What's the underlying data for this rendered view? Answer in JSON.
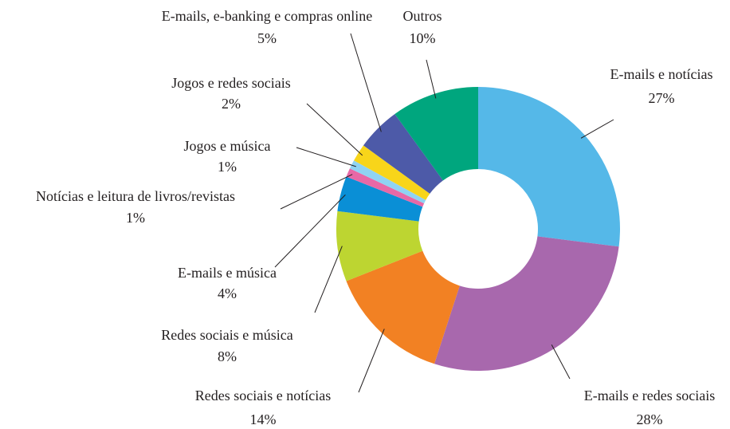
{
  "chart_data": {
    "type": "donut",
    "categories": [
      "E-mails e notícias",
      "E-mails e redes sociais",
      "Redes sociais e notícias",
      "Redes sociais e música",
      "E-mails e música",
      "Notícias e leitura de livros/revistas",
      "Jogos e música",
      "Jogos e redes sociais",
      "E-mails, e-banking e compras online",
      "Outros"
    ],
    "values": [
      27,
      28,
      14,
      8,
      4,
      1,
      1,
      2,
      5,
      10
    ],
    "value_labels": [
      "27%",
      "28%",
      "14%",
      "8%",
      "4%",
      "1%",
      "1%",
      "2%",
      "5%",
      "10%"
    ],
    "colors": [
      "#55b8e8",
      "#a868ad",
      "#f28123",
      "#bdd531",
      "#0a8fd6",
      "#e868a6",
      "#8fd3f3",
      "#f8d51a",
      "#4d5aa8",
      "#00a67e"
    ]
  }
}
